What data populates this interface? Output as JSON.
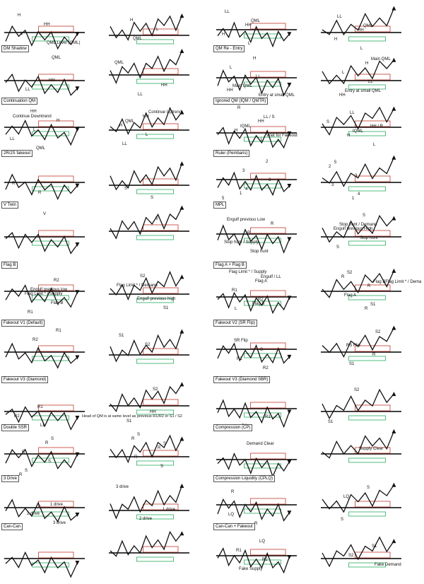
{
  "sections": [
    {
      "title": "",
      "labels_a": [
        "H",
        "HH",
        "L",
        "QML Level (QML)"
      ],
      "labels_b": [
        "H",
        "L",
        "QML"
      ]
    },
    {
      "title": "",
      "labels_a": [
        "HH",
        "H",
        "L",
        "LL",
        "QML"
      ],
      "labels_b": [
        "HH",
        "H",
        "L",
        "LL",
        "QML"
      ]
    },
    {
      "title": "DM Shadow",
      "labels_a": [
        "HH",
        "LL",
        "QML"
      ],
      "labels_b": [
        "HH",
        "LL",
        "QML"
      ]
    },
    {
      "title": "QM Re - Entry",
      "labels_a": [
        "HH",
        "H",
        "L",
        "LL",
        "Main QML",
        "Entry at small QML"
      ],
      "labels_b": [
        "HH",
        "H",
        "L",
        "LL",
        "Entry at small QML",
        "Main QML"
      ]
    },
    {
      "title": "Continuation QM",
      "labels_a": [
        "HH",
        "H",
        "L",
        "LL",
        "QML",
        "Continue Downtrend"
      ],
      "labels_b": [
        "HH",
        "H",
        "L",
        "LL",
        "Continue Uptrend",
        "QML"
      ]
    },
    {
      "title": "Ignored QM (IQM / QMTR)",
      "labels_a": [
        "HH",
        "H",
        "L",
        "R",
        "LL / S",
        "IQML",
        "Wait for Fakeout"
      ],
      "labels_b": [
        "HH / R",
        "H",
        "L",
        "LL",
        "S",
        "IQML"
      ]
    },
    {
      "title": "2R/2S fakeout",
      "labels_a": [
        "R",
        "R"
      ],
      "labels_b": [
        "S",
        "S"
      ]
    },
    {
      "title": "Ruler (Pembaris)",
      "labels_a": [
        "1",
        "2",
        "3",
        "3",
        "4",
        "5"
      ],
      "labels_b": [
        "1",
        "2",
        "3",
        "3",
        "4",
        "5"
      ]
    },
    {
      "title": "V Twin",
      "labels_a": [
        "V"
      ],
      "labels_b": [
        "V"
      ]
    },
    {
      "title": "MPL",
      "labels_a": [
        "R",
        "R",
        "Stop hunt / Supply",
        "Stop hunt",
        "Engulf previous Low"
      ],
      "labels_b": [
        "Engulf previous High",
        "Stop hunt",
        "S",
        "S",
        "Stop hunt / Demand"
      ]
    },
    {
      "title": "Flag B",
      "labels_a": [
        "Flag Limit * / Supply",
        "Flag B",
        "R1",
        "R2",
        "Engulf previous low"
      ],
      "labels_b": [
        "Engulf previous high",
        "S1",
        "S2",
        "Flag Limit * / Demand"
      ]
    },
    {
      "title": "Flag A + Flag B",
      "labels_a": [
        "Flag B",
        "Flag Limit * / Supply",
        "Flag A",
        "R1",
        "R2",
        "L",
        "Engulf / LL"
      ],
      "labels_b": [
        "R",
        "R",
        "R",
        "Flag A",
        "S1",
        "S2",
        "Flag BFlag Limit * / Demand"
      ]
    },
    {
      "title": "Fakeout V1 (Default)",
      "labels_a": [
        "R1",
        "R2"
      ],
      "labels_b": [
        "S1",
        "S2"
      ]
    },
    {
      "title": "Fakeout V2 (SR Flip)",
      "labels_a": [
        "SR Flip",
        "S",
        "R1",
        "R2"
      ],
      "labels_b": [
        "RS Flip",
        "R",
        "S1",
        "S2"
      ]
    },
    {
      "title": "Fakeout V3 (Diamond)",
      "labels_a": [
        "R1",
        "R2",
        "LL"
      ],
      "labels_b": [
        "HH",
        "S1",
        "S2"
      ]
    },
    {
      "title": "Fakeout V3 (Diamond SBR)",
      "labels_a": [
        "R1",
        "R2"
      ],
      "labels_b": [
        "S1",
        "S2"
      ]
    },
    {
      "title": "Double SSR",
      "labels_a": [
        "R",
        "R",
        "R",
        "S",
        "S",
        "S"
      ],
      "labels_b": [
        "R",
        "R",
        "R",
        "S",
        "S",
        "S"
      ]
    },
    {
      "title": "Compression (CP)",
      "labels_a": [
        "Demand Clear"
      ],
      "labels_b": [
        "Supply Clear"
      ]
    },
    {
      "title": "3 Drive",
      "labels_a": [
        "1 drive",
        "2 drive",
        "3 drive"
      ],
      "labels_b": [
        "1 drive",
        "2 drive",
        "3 drive"
      ]
    },
    {
      "title": "Compression Liquidity (CPLQ)",
      "labels_a": [
        "LQ",
        "R",
        "R"
      ],
      "labels_b": [
        "S",
        "S",
        "LQ"
      ]
    },
    {
      "title": "Can-Can",
      "labels_a": [],
      "labels_b": []
    },
    {
      "title": "Can-Can + Fakeout",
      "labels_a": [
        "LQ",
        "R1",
        "R2",
        "Fake Supply"
      ],
      "labels_b": [
        "S1",
        "S2",
        "Fake Demand"
      ]
    }
  ],
  "footnote": "Head of QM is at same level as previous R1/R2 or S1 / S2"
}
